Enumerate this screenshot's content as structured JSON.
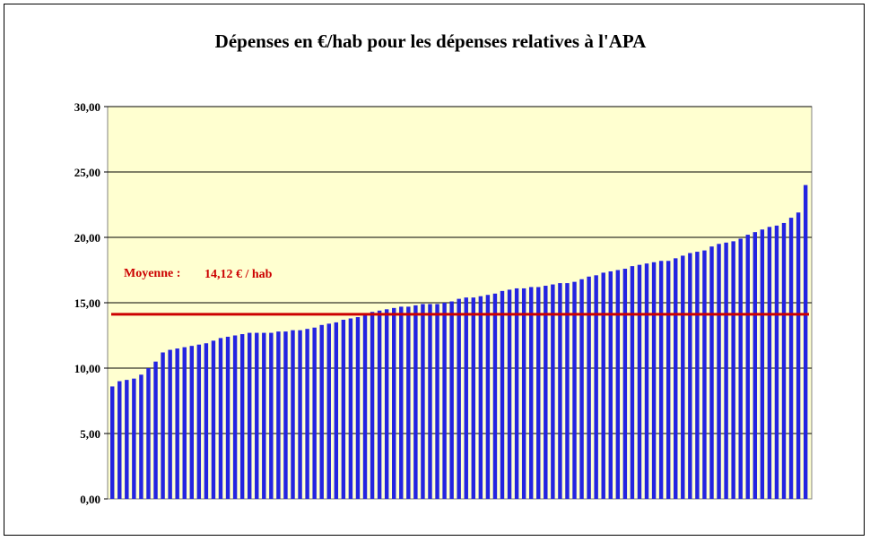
{
  "chart_data": {
    "type": "bar",
    "title": "Dépenses en €/hab pour les dépenses relatives à l'APA",
    "xlabel": "",
    "ylabel": "",
    "ylim": [
      0,
      30
    ],
    "yticks": [
      "0,00",
      "5,00",
      "10,00",
      "15,00",
      "20,00",
      "25,00",
      "30,00"
    ],
    "grid": true,
    "plot_background": "#ffffd0",
    "bar_color": "#2424e0",
    "average": {
      "value": 14.12,
      "color": "#cc0000",
      "label": "Moyenne :",
      "value_label": "14,12 € / hab"
    },
    "values": [
      8.6,
      9.0,
      9.1,
      9.2,
      9.5,
      10.0,
      10.5,
      11.2,
      11.4,
      11.5,
      11.6,
      11.7,
      11.8,
      11.9,
      12.1,
      12.3,
      12.4,
      12.5,
      12.6,
      12.7,
      12.7,
      12.7,
      12.7,
      12.8,
      12.8,
      12.9,
      12.9,
      13.0,
      13.1,
      13.3,
      13.4,
      13.5,
      13.7,
      13.8,
      13.9,
      14.1,
      14.3,
      14.4,
      14.5,
      14.6,
      14.7,
      14.7,
      14.8,
      14.9,
      14.9,
      14.9,
      15.0,
      15.1,
      15.3,
      15.4,
      15.4,
      15.5,
      15.6,
      15.7,
      15.9,
      16.0,
      16.1,
      16.1,
      16.2,
      16.2,
      16.3,
      16.4,
      16.5,
      16.5,
      16.6,
      16.8,
      17.0,
      17.1,
      17.3,
      17.4,
      17.5,
      17.6,
      17.8,
      17.9,
      18.0,
      18.1,
      18.2,
      18.2,
      18.4,
      18.6,
      18.8,
      18.9,
      19.0,
      19.3,
      19.5,
      19.6,
      19.7,
      19.9,
      20.2,
      20.4,
      20.6,
      20.8,
      20.9,
      21.1,
      21.5,
      21.9,
      24.0
    ]
  }
}
